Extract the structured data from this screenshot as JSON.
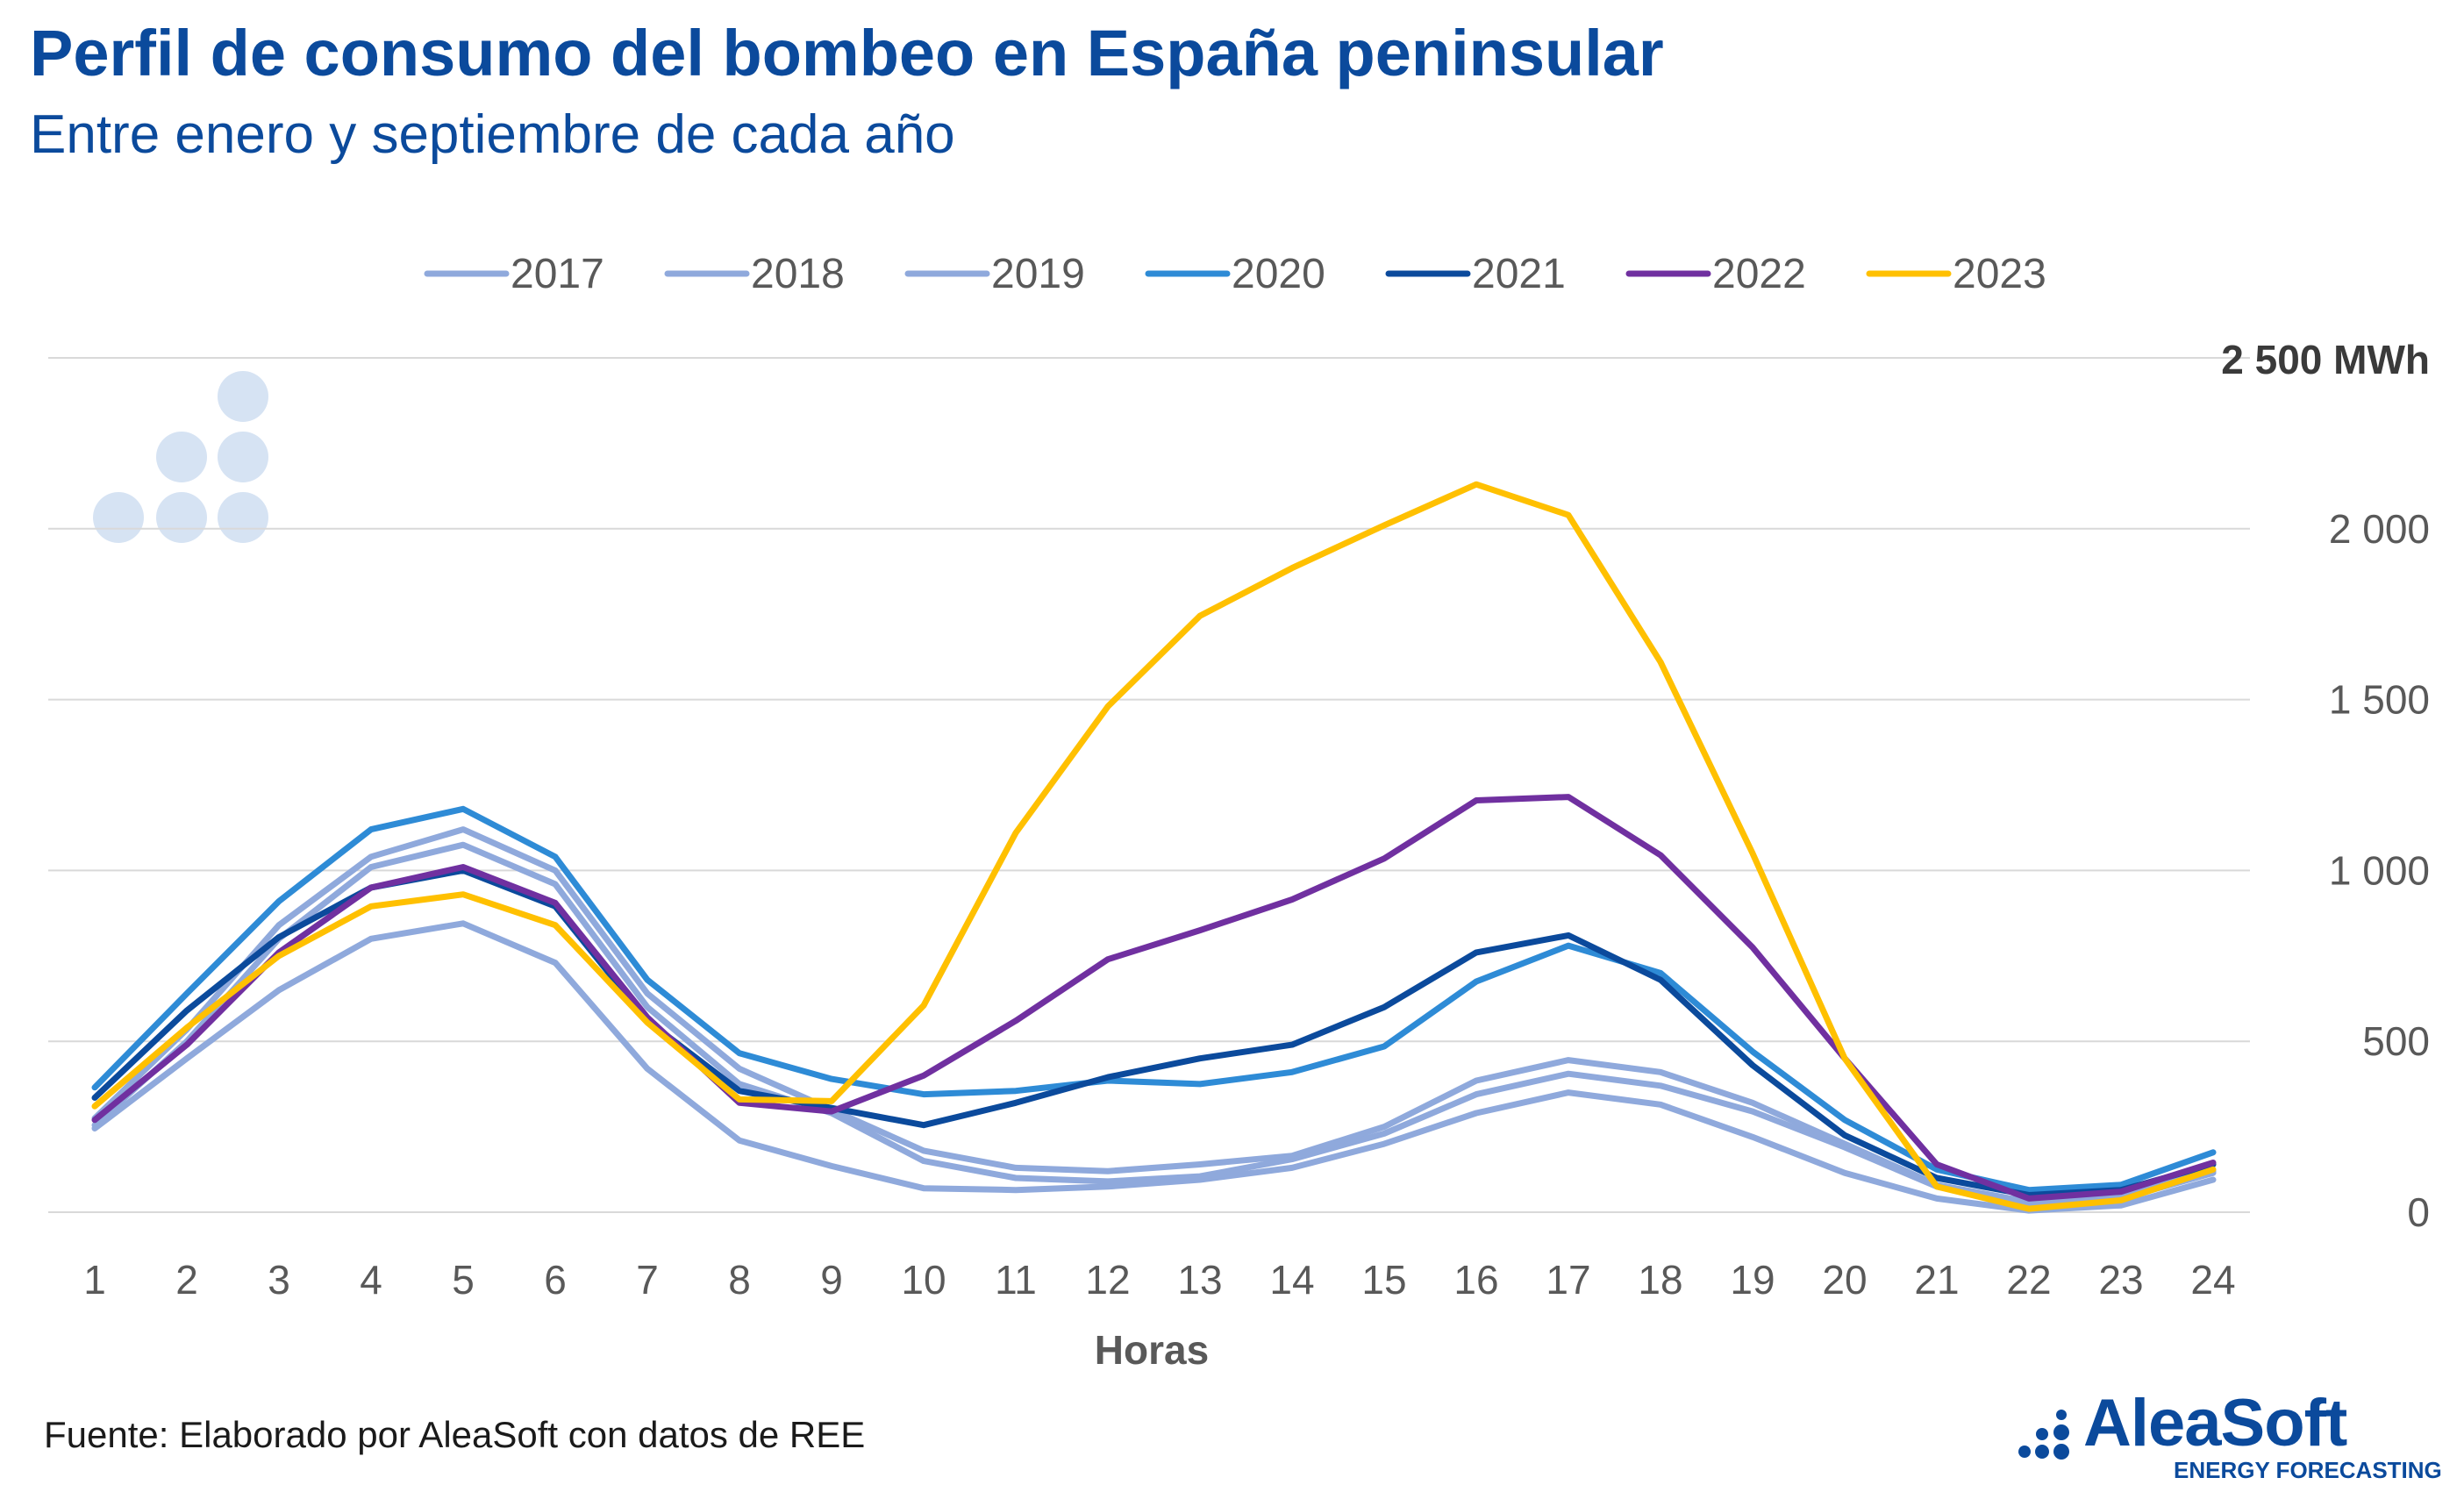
{
  "title": "Perfil de consumo del bombeo en España peninsular",
  "subtitle": "Entre enero y septiembre de cada año",
  "source": "Fuente: Elaborado por AleaSoft con datos de REE",
  "logo": {
    "name": "AleaSoft",
    "tagline": "ENERGY FORECASTING"
  },
  "chart_data": {
    "type": "line",
    "xlabel": "Horas",
    "ylabel": "",
    "unit_label": "2 500 MWh",
    "ylim": [
      0,
      2500
    ],
    "y_ticks": [
      "0",
      "500",
      "1 000",
      "1 500",
      "2 000"
    ],
    "y_tick_values": [
      0,
      500,
      1000,
      1500,
      2000
    ],
    "grid": true,
    "legend_position": "top",
    "x": [
      1,
      2,
      3,
      4,
      5,
      6,
      7,
      8,
      9,
      10,
      11,
      12,
      13,
      14,
      15,
      16,
      17,
      18,
      19,
      20,
      21,
      22,
      23,
      24
    ],
    "series": [
      {
        "name": "2017",
        "color": "#8fa9dc",
        "values": [
          245,
          450,
          650,
          800,
          845,
          730,
          420,
          210,
          135,
          70,
          65,
          75,
          95,
          130,
          200,
          290,
          350,
          315,
          220,
          115,
          40,
          5,
          20,
          95
        ]
      },
      {
        "name": "2018",
        "color": "#8fa9dc",
        "values": [
          255,
          500,
          800,
          1010,
          1075,
          960,
          600,
          375,
          290,
          150,
          100,
          90,
          105,
          155,
          230,
          345,
          405,
          370,
          295,
          190,
          75,
          25,
          40,
          115
        ]
      },
      {
        "name": "2019",
        "color": "#8fa9dc",
        "values": [
          275,
          535,
          840,
          1040,
          1120,
          1000,
          640,
          420,
          300,
          180,
          130,
          120,
          140,
          165,
          250,
          385,
          445,
          410,
          320,
          200,
          80,
          30,
          50,
          120
        ]
      },
      {
        "name": "2020",
        "color": "#2e8bd6",
        "values": [
          365,
          640,
          910,
          1120,
          1180,
          1040,
          680,
          465,
          390,
          345,
          355,
          385,
          375,
          410,
          485,
          675,
          780,
          700,
          470,
          270,
          125,
          65,
          80,
          175
        ]
      },
      {
        "name": "2021",
        "color": "#0b4a9c",
        "values": [
          335,
          590,
          805,
          950,
          1000,
          895,
          560,
          355,
          305,
          255,
          320,
          395,
          450,
          490,
          600,
          760,
          810,
          680,
          430,
          225,
          100,
          50,
          65,
          140
        ]
      },
      {
        "name": "2022",
        "color": "#7030a0",
        "values": [
          270,
          490,
          760,
          950,
          1010,
          905,
          570,
          320,
          295,
          400,
          560,
          740,
          825,
          915,
          1035,
          1205,
          1215,
          1045,
          775,
          450,
          140,
          40,
          60,
          145
        ]
      },
      {
        "name": "2023",
        "color": "#ffc000",
        "values": [
          310,
          540,
          750,
          895,
          930,
          840,
          555,
          330,
          325,
          605,
          1110,
          1480,
          1745,
          1885,
          2010,
          2130,
          2040,
          1610,
          1050,
          450,
          75,
          10,
          35,
          125
        ]
      }
    ]
  }
}
